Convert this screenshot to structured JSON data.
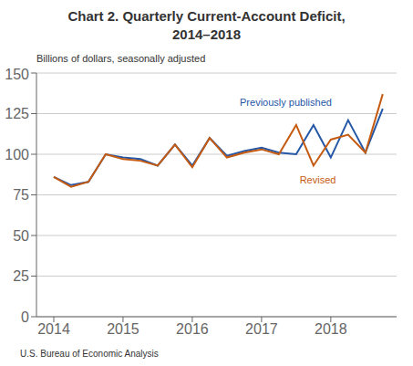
{
  "chart_data": {
    "type": "line",
    "title": "Chart 2. Quarterly Current-Account Deficit,\n2014–2018",
    "ylabel": "Billions of dollars, seasonally adjusted",
    "footnote": "U.S. Bureau of Economic Analysis",
    "x": [
      2014.0,
      2014.25,
      2014.5,
      2014.75,
      2015.0,
      2015.25,
      2015.5,
      2015.75,
      2016.0,
      2016.25,
      2016.5,
      2016.75,
      2017.0,
      2017.25,
      2017.5,
      2017.75,
      2018.0,
      2018.25,
      2018.5,
      2018.75
    ],
    "series": [
      {
        "name": "Previously published",
        "color": "#2557A7",
        "values": [
          86,
          81,
          83,
          100,
          98,
          97,
          93,
          106,
          93,
          110,
          99,
          102,
          104,
          101,
          100,
          118,
          98,
          121,
          101,
          128
        ]
      },
      {
        "name": "Revised",
        "color": "#C55A11",
        "values": [
          86,
          80,
          83,
          100,
          97,
          96,
          93,
          106,
          92,
          110,
          98,
          101,
          103,
          100,
          118,
          93,
          109,
          112,
          101,
          137
        ]
      }
    ],
    "xlim": [
      2013.75,
      2018.95
    ],
    "xticks": [
      2014,
      2015,
      2016,
      2017,
      2018
    ],
    "ylim": [
      0,
      150
    ],
    "yticks": [
      0,
      25,
      50,
      75,
      100,
      125,
      150
    ],
    "grid": true,
    "annotations": [
      {
        "text": "Previously published",
        "x": 2017.35,
        "y": 128,
        "color": "#2557A7",
        "anchor": "bottom"
      },
      {
        "text": "Revised",
        "x": 2017.55,
        "y": 88,
        "color": "#C55A11",
        "anchor": "top"
      }
    ]
  }
}
